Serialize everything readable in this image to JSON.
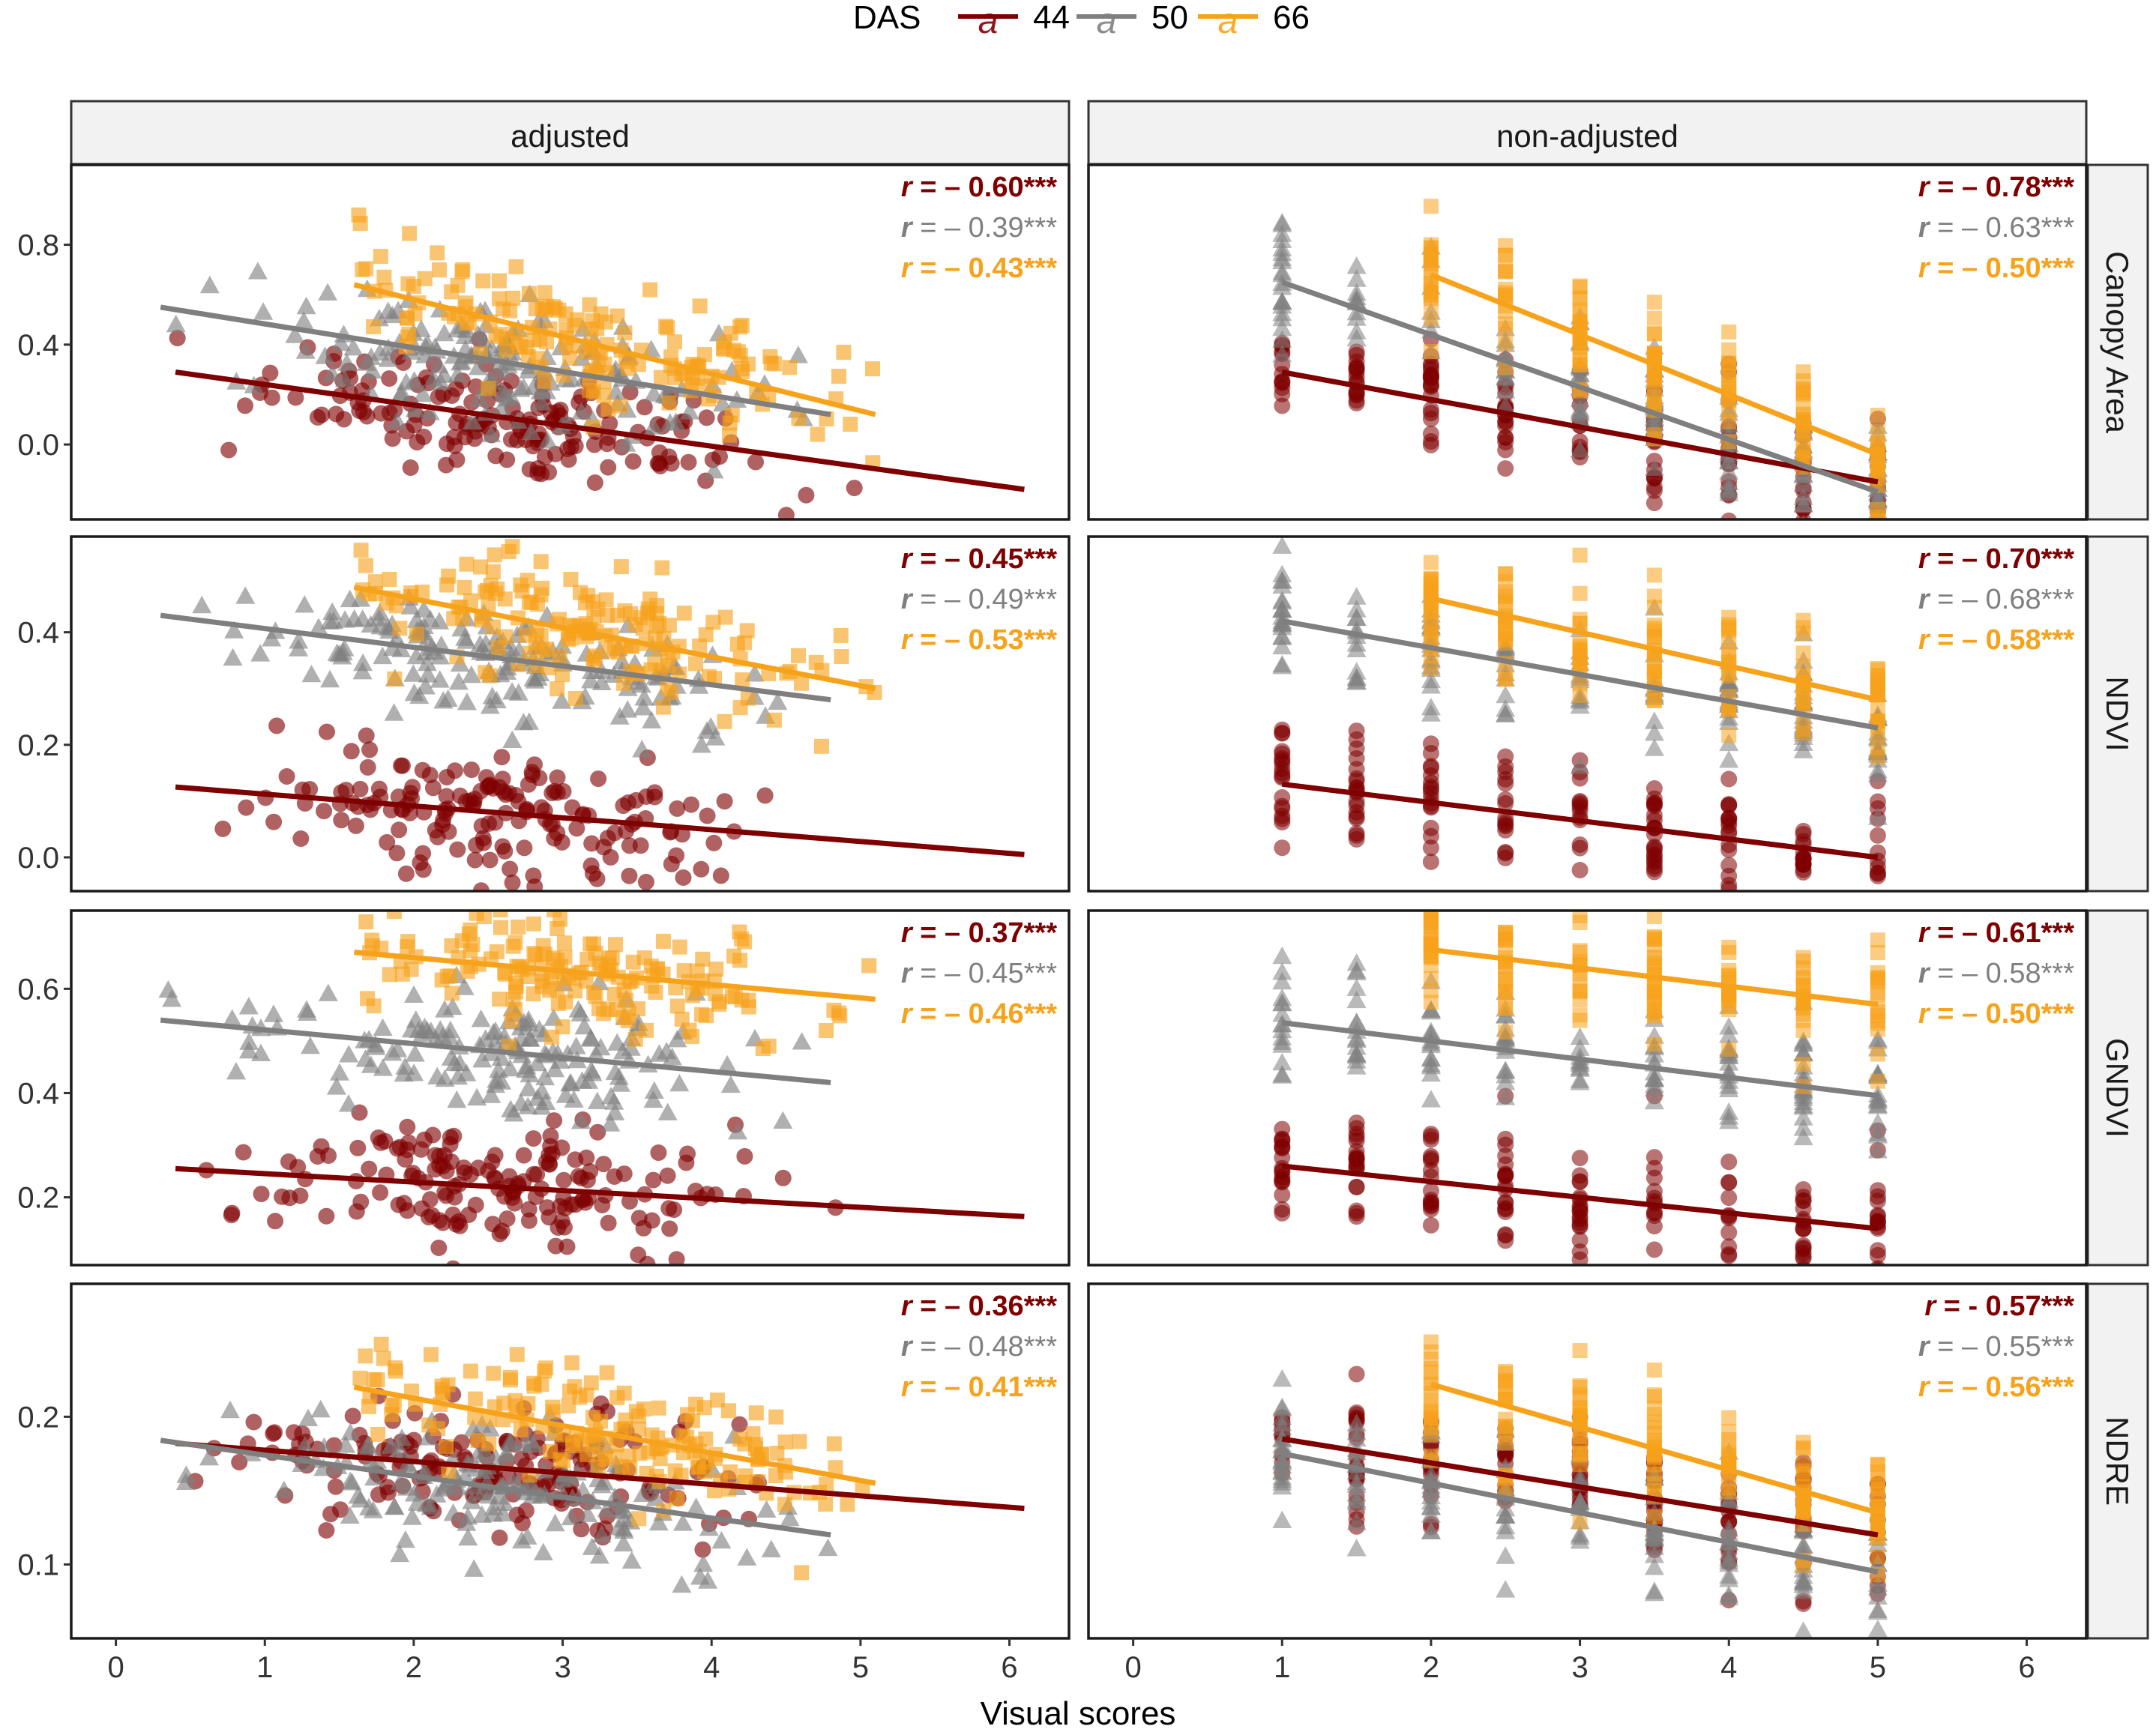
{
  "legend": {
    "title": "DAS",
    "key_glyph": "a",
    "entries": [
      {
        "label": "44",
        "color": "#7f0000",
        "shape": "circle"
      },
      {
        "label": "50",
        "color": "#7f7f7f",
        "shape": "triangle"
      },
      {
        "label": "66",
        "color": "#f7a21b",
        "shape": "square"
      }
    ]
  },
  "axis": {
    "xlabel": "Visual scores",
    "xticks": [
      "0",
      "1",
      "2",
      "3",
      "4",
      "5",
      "6"
    ]
  },
  "panels": {
    "columns": [
      "adjusted",
      "non-adjusted"
    ],
    "rows": [
      "Canopy Area",
      "NDVI",
      "GNDVI",
      "NDRE"
    ]
  },
  "chart_data": {
    "type": "scatter",
    "title": "",
    "xlabel": "Visual scores",
    "ylabel": "",
    "xlim": [
      -0.3,
      6.4
    ],
    "series_names": [
      "44",
      "50",
      "66"
    ],
    "rows": [
      {
        "facet": "Canopy Area",
        "ylim": [
          -0.3,
          1.12
        ],
        "yticks": [
          0.0,
          0.4,
          0.8
        ],
        "yticklabels": [
          "0.0",
          "0.4",
          "0.8"
        ],
        "adjusted": {
          "ranges": [
            [
              0.4,
              6.1
            ],
            [
              0.3,
              4.8
            ],
            [
              1.6,
              5.1
            ]
          ],
          "trend_lines": [
            {
              "series": "44",
              "x": [
                0.4,
                6.1
              ],
              "y": [
                0.29,
                -0.18
              ]
            },
            {
              "series": "50",
              "x": [
                0.3,
                4.8
              ],
              "y": [
                0.55,
                0.12
              ]
            },
            {
              "series": "66",
              "x": [
                1.6,
                5.1
              ],
              "y": [
                0.64,
                0.12
              ]
            }
          ],
          "annotations": [
            {
              "series": "44",
              "r": "r",
              "text": " = – 0.60***",
              "bold": true
            },
            {
              "series": "50",
              "r": "r",
              "text": " = – 0.39***",
              "bold": false
            },
            {
              "series": "66",
              "r": "r",
              "text": " = – 0.43***",
              "bold": true
            }
          ]
        },
        "nonadjusted": {
          "ranges": [
            [
              1,
              5
            ],
            [
              1,
              5
            ],
            [
              2,
              5
            ]
          ],
          "trend_lines": [
            {
              "series": "44",
              "x": [
                1,
                5
              ],
              "y": [
                0.29,
                -0.15
              ]
            },
            {
              "series": "50",
              "x": [
                1,
                5
              ],
              "y": [
                0.65,
                -0.19
              ]
            },
            {
              "series": "66",
              "x": [
                2,
                5
              ],
              "y": [
                0.68,
                -0.04
              ]
            }
          ],
          "annotations": [
            {
              "series": "44",
              "r": "r",
              "text": " = – 0.78***",
              "bold": true
            },
            {
              "series": "50",
              "r": "r",
              "text": " = – 0.63***",
              "bold": false
            },
            {
              "series": "66",
              "r": "r",
              "text": " = – 0.50***",
              "bold": true
            }
          ]
        }
      },
      {
        "facet": "NDVI",
        "ylim": [
          -0.06,
          0.57
        ],
        "yticks": [
          0.0,
          0.2,
          0.4
        ],
        "yticklabels": [
          "0.0",
          "0.2",
          "0.4"
        ],
        "adjusted": {
          "ranges": [
            [
              0.4,
              6.1
            ],
            [
              0.3,
              4.8
            ],
            [
              1.6,
              5.1
            ]
          ],
          "trend_lines": [
            {
              "series": "44",
              "x": [
                0.4,
                6.1
              ],
              "y": [
                0.125,
                0.005
              ]
            },
            {
              "series": "50",
              "x": [
                0.3,
                4.8
              ],
              "y": [
                0.43,
                0.28
              ]
            },
            {
              "series": "66",
              "x": [
                1.6,
                5.1
              ],
              "y": [
                0.48,
                0.3
              ]
            }
          ],
          "annotations": [
            {
              "series": "44",
              "r": "r",
              "text": " = – 0.45***",
              "bold": true
            },
            {
              "series": "50",
              "r": "r",
              "text": " = – 0.49***",
              "bold": false
            },
            {
              "series": "66",
              "r": "r",
              "text": " = – 0.53***",
              "bold": true
            }
          ]
        },
        "nonadjusted": {
          "ranges": [
            [
              1,
              5
            ],
            [
              1,
              5
            ],
            [
              2,
              5
            ]
          ],
          "trend_lines": [
            {
              "series": "44",
              "x": [
                1,
                5
              ],
              "y": [
                0.13,
                0.0
              ]
            },
            {
              "series": "50",
              "x": [
                1,
                5
              ],
              "y": [
                0.42,
                0.23
              ]
            },
            {
              "series": "66",
              "x": [
                2,
                5
              ],
              "y": [
                0.46,
                0.28
              ]
            }
          ],
          "annotations": [
            {
              "series": "44",
              "r": "r",
              "text": " = – 0.70***",
              "bold": true
            },
            {
              "series": "50",
              "r": "r",
              "text": " = – 0.68***",
              "bold": false
            },
            {
              "series": "66",
              "r": "r",
              "text": " = – 0.58***",
              "bold": true
            }
          ]
        }
      },
      {
        "facet": "GNDVI",
        "ylim": [
          0.07,
          0.75
        ],
        "yticks": [
          0.2,
          0.4,
          0.6
        ],
        "yticklabels": [
          "0.2",
          "0.4",
          "0.6"
        ],
        "adjusted": {
          "ranges": [
            [
              0.4,
              6.1
            ],
            [
              0.3,
              4.8
            ],
            [
              1.6,
              5.1
            ]
          ],
          "trend_lines": [
            {
              "series": "44",
              "x": [
                0.4,
                6.1
              ],
              "y": [
                0.255,
                0.163
              ]
            },
            {
              "series": "50",
              "x": [
                0.3,
                4.8
              ],
              "y": [
                0.54,
                0.42
              ]
            },
            {
              "series": "66",
              "x": [
                1.6,
                5.1
              ],
              "y": [
                0.67,
                0.58
              ]
            }
          ],
          "annotations": [
            {
              "series": "44",
              "r": "r",
              "text": " = – 0.37***",
              "bold": true
            },
            {
              "series": "50",
              "r": "r",
              "text": " = – 0.45***",
              "bold": false
            },
            {
              "series": "66",
              "r": "r",
              "text": " = – 0.46***",
              "bold": true
            }
          ]
        },
        "nonadjusted": {
          "ranges": [
            [
              1,
              5
            ],
            [
              1,
              5
            ],
            [
              2,
              5
            ]
          ],
          "trend_lines": [
            {
              "series": "44",
              "x": [
                1,
                5
              ],
              "y": [
                0.26,
                0.14
              ]
            },
            {
              "series": "50",
              "x": [
                1,
                5
              ],
              "y": [
                0.535,
                0.395
              ]
            },
            {
              "series": "66",
              "x": [
                2,
                5
              ],
              "y": [
                0.675,
                0.57
              ]
            }
          ],
          "annotations": [
            {
              "series": "44",
              "r": "r",
              "text": " = – 0.61***",
              "bold": true
            },
            {
              "series": "50",
              "r": "r",
              "text": " = – 0.58***",
              "bold": false
            },
            {
              "series": "66",
              "r": "r",
              "text": " = – 0.50***",
              "bold": true
            }
          ]
        }
      },
      {
        "facet": "NDRE",
        "ylim": [
          0.05,
          0.29
        ],
        "yticks": [
          0.1,
          0.2
        ],
        "yticklabels": [
          "0.1",
          "0.2"
        ],
        "adjusted": {
          "ranges": [
            [
              0.4,
              6.1
            ],
            [
              0.3,
              4.8
            ],
            [
              1.6,
              5.1
            ]
          ],
          "trend_lines": [
            {
              "series": "44",
              "x": [
                0.4,
                6.1
              ],
              "y": [
                0.182,
                0.138
              ]
            },
            {
              "series": "50",
              "x": [
                0.3,
                4.8
              ],
              "y": [
                0.184,
                0.12
              ]
            },
            {
              "series": "66",
              "x": [
                1.6,
                5.1
              ],
              "y": [
                0.22,
                0.155
              ]
            }
          ],
          "annotations": [
            {
              "series": "44",
              "r": "r",
              "text": " = – 0.36***",
              "bold": true
            },
            {
              "series": "50",
              "r": "r",
              "text": " = – 0.48***",
              "bold": false
            },
            {
              "series": "66",
              "r": "r",
              "text": " = – 0.41***",
              "bold": true
            }
          ]
        },
        "nonadjusted": {
          "ranges": [
            [
              1,
              5
            ],
            [
              1,
              5
            ],
            [
              2,
              5
            ]
          ],
          "trend_lines": [
            {
              "series": "44",
              "x": [
                1,
                5
              ],
              "y": [
                0.185,
                0.12
              ]
            },
            {
              "series": "50",
              "x": [
                1,
                5
              ],
              "y": [
                0.175,
                0.095
              ]
            },
            {
              "series": "66",
              "x": [
                2,
                5
              ],
              "y": [
                0.222,
                0.135
              ]
            }
          ],
          "annotations": [
            {
              "series": "44",
              "r": "r",
              "text": " = - 0.57***",
              "bold": true
            },
            {
              "series": "50",
              "r": "r",
              "text": " = – 0.55***",
              "bold": false
            },
            {
              "series": "66",
              "r": "r",
              "text": " = – 0.56***",
              "bold": true
            }
          ]
        }
      }
    ]
  }
}
